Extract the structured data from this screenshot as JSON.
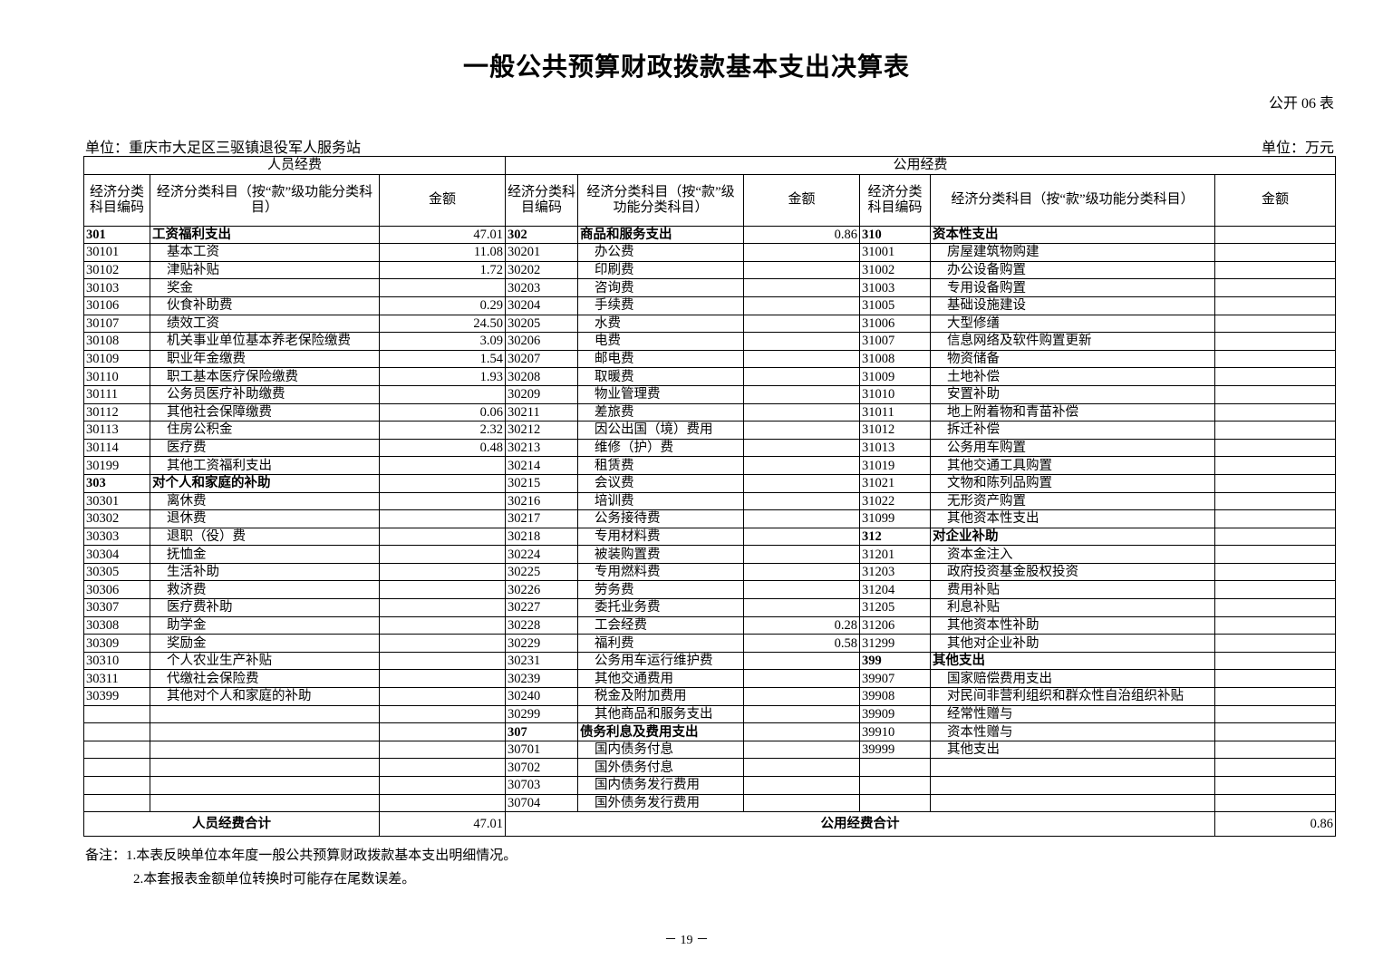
{
  "title": "一般公共预算财政拨款基本支出决算表",
  "form_no": "公开 06 表",
  "unit_org": "单位：重庆市大足区三驱镇退役军人服务站",
  "unit_money": "单位：万元",
  "groups": {
    "personnel": "人员经费",
    "public": "公用经费"
  },
  "headers": {
    "code": "经济分类科目编码",
    "name_left": "经济分类科目（按“款”级功能分类科目）",
    "name_mid": "经济分类科目（按“款”级功能分类科目）",
    "name_right": "经济分类科目（按“款”级功能分类科目）",
    "amount": "金额"
  },
  "personnel_rows": [
    [
      "301",
      "工资福利支出",
      "47.01"
    ],
    [
      "30101",
      "基本工资",
      "11.08"
    ],
    [
      "30102",
      "津贴补贴",
      "1.72"
    ],
    [
      "30103",
      "奖金",
      ""
    ],
    [
      "30106",
      "伙食补助费",
      "0.29"
    ],
    [
      "30107",
      "绩效工资",
      "24.50"
    ],
    [
      "30108",
      "机关事业单位基本养老保险缴费",
      "3.09"
    ],
    [
      "30109",
      "职业年金缴费",
      "1.54"
    ],
    [
      "30110",
      "职工基本医疗保险缴费",
      "1.93"
    ],
    [
      "30111",
      "公务员医疗补助缴费",
      ""
    ],
    [
      "30112",
      "其他社会保障缴费",
      "0.06"
    ],
    [
      "30113",
      "住房公积金",
      "2.32"
    ],
    [
      "30114",
      "医疗费",
      "0.48"
    ],
    [
      "30199",
      "其他工资福利支出",
      ""
    ],
    [
      "303",
      "对个人和家庭的补助",
      ""
    ],
    [
      "30301",
      "离休费",
      ""
    ],
    [
      "30302",
      "退休费",
      ""
    ],
    [
      "30303",
      "退职（役）费",
      ""
    ],
    [
      "30304",
      "抚恤金",
      ""
    ],
    [
      "30305",
      "生活补助",
      ""
    ],
    [
      "30306",
      "救济费",
      ""
    ],
    [
      "30307",
      "医疗费补助",
      ""
    ],
    [
      "30308",
      "助学金",
      ""
    ],
    [
      "30309",
      "奖励金",
      ""
    ],
    [
      "30310",
      "个人农业生产补贴",
      ""
    ],
    [
      "30311",
      "代缴社会保险费",
      ""
    ],
    [
      "30399",
      "其他对个人和家庭的补助",
      ""
    ],
    [
      "",
      "",
      ""
    ],
    [
      "",
      "",
      ""
    ],
    [
      "",
      "",
      ""
    ],
    [
      "",
      "",
      ""
    ],
    [
      "",
      "",
      ""
    ],
    [
      "",
      "",
      ""
    ]
  ],
  "public_mid_rows": [
    [
      "302",
      "商品和服务支出",
      "0.86"
    ],
    [
      "30201",
      "办公费",
      ""
    ],
    [
      "30202",
      "印刷费",
      ""
    ],
    [
      "30203",
      "咨询费",
      ""
    ],
    [
      "30204",
      "手续费",
      ""
    ],
    [
      "30205",
      "水费",
      ""
    ],
    [
      "30206",
      "电费",
      ""
    ],
    [
      "30207",
      "邮电费",
      ""
    ],
    [
      "30208",
      "取暖费",
      ""
    ],
    [
      "30209",
      "物业管理费",
      ""
    ],
    [
      "30211",
      "差旅费",
      ""
    ],
    [
      "30212",
      "因公出国（境）费用",
      ""
    ],
    [
      "30213",
      "维修（护）费",
      ""
    ],
    [
      "30214",
      "租赁费",
      ""
    ],
    [
      "30215",
      "会议费",
      ""
    ],
    [
      "30216",
      "培训费",
      ""
    ],
    [
      "30217",
      "公务接待费",
      ""
    ],
    [
      "30218",
      "专用材料费",
      ""
    ],
    [
      "30224",
      "被装购置费",
      ""
    ],
    [
      "30225",
      "专用燃料费",
      ""
    ],
    [
      "30226",
      "劳务费",
      ""
    ],
    [
      "30227",
      "委托业务费",
      ""
    ],
    [
      "30228",
      "工会经费",
      "0.28"
    ],
    [
      "30229",
      "福利费",
      "0.58"
    ],
    [
      "30231",
      "公务用车运行维护费",
      ""
    ],
    [
      "30239",
      "其他交通费用",
      ""
    ],
    [
      "30240",
      "税金及附加费用",
      ""
    ],
    [
      "30299",
      "其他商品和服务支出",
      ""
    ],
    [
      "307",
      "债务利息及费用支出",
      ""
    ],
    [
      "30701",
      "国内债务付息",
      ""
    ],
    [
      "30702",
      "国外债务付息",
      ""
    ],
    [
      "30703",
      "国内债务发行费用",
      ""
    ],
    [
      "30704",
      "国外债务发行费用",
      ""
    ]
  ],
  "public_right_rows": [
    [
      "310",
      "资本性支出",
      ""
    ],
    [
      "31001",
      "房屋建筑物购建",
      ""
    ],
    [
      "31002",
      "办公设备购置",
      ""
    ],
    [
      "31003",
      "专用设备购置",
      ""
    ],
    [
      "31005",
      "基础设施建设",
      ""
    ],
    [
      "31006",
      "大型修缮",
      ""
    ],
    [
      "31007",
      "信息网络及软件购置更新",
      ""
    ],
    [
      "31008",
      "物资储备",
      ""
    ],
    [
      "31009",
      "土地补偿",
      ""
    ],
    [
      "31010",
      "安置补助",
      ""
    ],
    [
      "31011",
      "地上附着物和青苗补偿",
      ""
    ],
    [
      "31012",
      "拆迁补偿",
      ""
    ],
    [
      "31013",
      "公务用车购置",
      ""
    ],
    [
      "31019",
      "其他交通工具购置",
      ""
    ],
    [
      "31021",
      "文物和陈列品购置",
      ""
    ],
    [
      "31022",
      "无形资产购置",
      ""
    ],
    [
      "31099",
      "其他资本性支出",
      ""
    ],
    [
      "312",
      "对企业补助",
      ""
    ],
    [
      "31201",
      "资本金注入",
      ""
    ],
    [
      "31203",
      "政府投资基金股权投资",
      ""
    ],
    [
      "31204",
      "费用补贴",
      ""
    ],
    [
      "31205",
      "利息补贴",
      ""
    ],
    [
      "31206",
      "其他资本性补助",
      ""
    ],
    [
      "31299",
      "其他对企业补助",
      ""
    ],
    [
      "399",
      "其他支出",
      ""
    ],
    [
      "39907",
      "国家赔偿费用支出",
      ""
    ],
    [
      "39908",
      "对民间非营利组织和群众性自治组织补贴",
      ""
    ],
    [
      "39909",
      "经常性赠与",
      ""
    ],
    [
      "39910",
      "资本性赠与",
      ""
    ],
    [
      "39999",
      "其他支出",
      ""
    ],
    [
      "",
      "",
      ""
    ],
    [
      "",
      "",
      ""
    ],
    [
      "",
      "",
      ""
    ],
    [
      "",
      "",
      ""
    ]
  ],
  "totals": {
    "personnel_label": "人员经费合计",
    "personnel_value": "47.01",
    "public_label": "公用经费合计",
    "public_value": "0.86"
  },
  "notes": [
    "备注：1.本表反映单位本年度一般公共预算财政拨款基本支出明细情况。",
    "2.本套报表金额单位转换时可能存在尾数误差。"
  ],
  "page_number": "－ 19 －"
}
